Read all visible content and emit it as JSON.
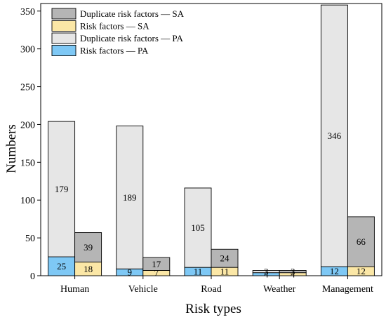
{
  "chart_data": {
    "type": "bar",
    "stacked": true,
    "grouped": true,
    "xlabel": "Risk types",
    "ylabel": "Numbers",
    "ylim": [
      0,
      360
    ],
    "yticks": [
      0,
      50,
      100,
      150,
      200,
      250,
      300,
      350
    ],
    "grid": false,
    "legend_position": "top-left",
    "categories": [
      "Human",
      "Vehicle",
      "Road",
      "Weather",
      "Management"
    ],
    "groups": [
      {
        "id": "PA",
        "series": [
          {
            "name": "Risk factors — PA",
            "color": "#7ec8f5",
            "values": [
              25,
              9,
              11,
              4,
              12
            ]
          },
          {
            "name": "Duplicate risk factors — PA",
            "color": "#e6e6e6",
            "values": [
              179,
              189,
              105,
              3,
              346
            ]
          }
        ]
      },
      {
        "id": "SA",
        "series": [
          {
            "name": "Risk factors — SA",
            "color": "#fbe7a6",
            "values": [
              18,
              7,
              11,
              4,
              12
            ]
          },
          {
            "name": "Duplicate risk factors — SA",
            "color": "#b5b5b5",
            "values": [
              39,
              17,
              24,
              3,
              66
            ]
          }
        ]
      }
    ],
    "legend_order": [
      "Duplicate risk factors — SA",
      "Risk factors — SA",
      "Duplicate risk factors — PA",
      "Risk factors — PA"
    ]
  }
}
